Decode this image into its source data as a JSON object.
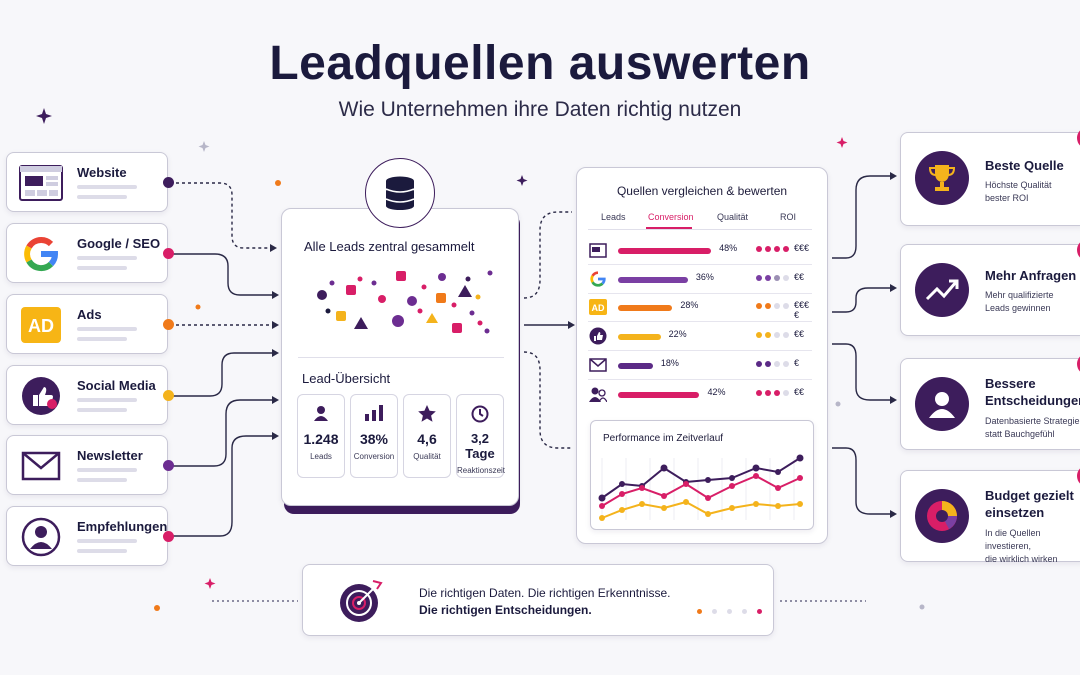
{
  "header": {
    "title": "Leadquellen auswerten",
    "subtitle": "Wie Unternehmen ihre Daten richtig nutzen"
  },
  "sources": [
    {
      "label": "Website",
      "icon": "website-icon",
      "dot_color": "#3d1d5c"
    },
    {
      "label": "Google / SEO",
      "icon": "google-icon",
      "dot_color": "#d81e67"
    },
    {
      "label": "Ads",
      "icon": "ad-icon",
      "dot_color": "#f07a1a"
    },
    {
      "label": "Social Media",
      "icon": "thumbs-up-icon",
      "dot_color": "#f4b31c"
    },
    {
      "label": "Newsletter",
      "icon": "envelope-icon",
      "dot_color": "#6c2d91"
    },
    {
      "label": "Empfehlungen",
      "icon": "person-icon",
      "dot_color": "#d81e67"
    }
  ],
  "center": {
    "collect_title": "Alle Leads zentral gesammelt",
    "overview_title": "Lead-Übersicht",
    "stats": [
      {
        "value": "1.248",
        "label": "Leads",
        "icon": "user-icon"
      },
      {
        "value": "38%",
        "label": "Conversion",
        "icon": "bar-chart-icon"
      },
      {
        "value": "4,6",
        "label": "Qualität",
        "icon": "star-icon"
      },
      {
        "value": "3,2 Tage",
        "label": "Reaktionszeit",
        "icon": "clock-icon"
      }
    ]
  },
  "compare": {
    "title": "Quellen vergleichen & bewerten",
    "tabs": [
      "Leads",
      "Conversion",
      "Qualität",
      "ROI"
    ],
    "active_tab": "Conversion",
    "rows": [
      {
        "icon": "website-icon",
        "pct": "48%",
        "value": 48,
        "color": "#d81e67",
        "roi": "€€€"
      },
      {
        "icon": "google-icon",
        "pct": "36%",
        "value": 36,
        "color": "#7a3fa3",
        "roi": "€€"
      },
      {
        "icon": "ad-icon",
        "pct": "28%",
        "value": 28,
        "color": "#f07a1a",
        "roi": "€€€€"
      },
      {
        "icon": "thumbs-up-icon",
        "pct": "22%",
        "value": 22,
        "color": "#f4b31c",
        "roi": "€€"
      },
      {
        "icon": "envelope-icon",
        "pct": "18%",
        "value": 18,
        "color": "#5b2a86",
        "roi": "€"
      },
      {
        "icon": "people-icon",
        "pct": "42%",
        "value": 42,
        "color": "#d81e67",
        "roi": "€€"
      }
    ],
    "performance_title": "Performance im Zeitverlauf"
  },
  "outcomes": [
    {
      "title": "Beste Quelle",
      "desc": "Höchste Qualität\nbester ROI",
      "icon": "trophy-icon"
    },
    {
      "title": "Mehr Anfragen",
      "desc": "Mehr qualifizierte\nLeads gewinnen",
      "icon": "trend-up-icon"
    },
    {
      "title": "Bessere\nEntscheidungen",
      "desc": "Datenbasierte Strategie\nstatt Bauchgefühl",
      "icon": "person-icon"
    },
    {
      "title": "Budget gezielt\neinsetzen",
      "desc": "In die Quellen investieren,\ndie wirklich wirken",
      "icon": "pie-chart-icon"
    }
  ],
  "footer": {
    "line1": "Die richtigen Daten. Die richtigen Erkenntnisse.",
    "line2": "Die richtigen Entscheidungen."
  },
  "colors": {
    "dark": "#1b1a3d",
    "purple": "#3d1d5c",
    "magenta": "#d81e67",
    "orange": "#f07a1a",
    "yellow": "#f4b31c"
  }
}
